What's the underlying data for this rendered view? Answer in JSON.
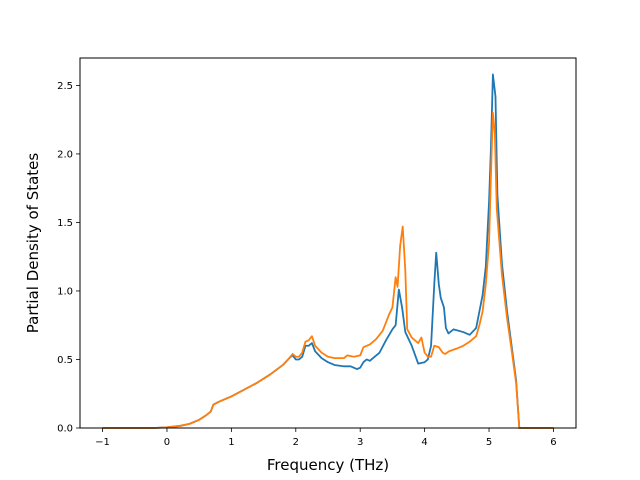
{
  "chart_data": {
    "type": "line",
    "title": "",
    "xlabel": "Frequency (THz)",
    "ylabel": "Partial Density of States",
    "xlim": [
      -1.35,
      6.35
    ],
    "ylim": [
      0.0,
      2.7
    ],
    "xticks": [
      -1,
      0,
      1,
      2,
      3,
      4,
      5,
      6
    ],
    "xtick_labels": [
      "−1",
      "0",
      "1",
      "2",
      "3",
      "4",
      "5",
      "6"
    ],
    "yticks": [
      0.0,
      0.5,
      1.0,
      1.5,
      2.0,
      2.5
    ],
    "ytick_labels": [
      "0.0",
      "0.5",
      "1.0",
      "1.5",
      "2.0",
      "2.5"
    ],
    "grid": false,
    "legend": "none",
    "series": [
      {
        "color": "#1f77b4",
        "points": [
          [
            -1.0,
            0.0
          ],
          [
            -0.2,
            0.0
          ],
          [
            0.0,
            0.005
          ],
          [
            0.2,
            0.015
          ],
          [
            0.35,
            0.03
          ],
          [
            0.5,
            0.06
          ],
          [
            0.6,
            0.09
          ],
          [
            0.68,
            0.12
          ],
          [
            0.72,
            0.17
          ],
          [
            0.8,
            0.19
          ],
          [
            1.0,
            0.23
          ],
          [
            1.2,
            0.28
          ],
          [
            1.4,
            0.33
          ],
          [
            1.6,
            0.39
          ],
          [
            1.8,
            0.46
          ],
          [
            1.9,
            0.51
          ],
          [
            1.95,
            0.53
          ],
          [
            2.0,
            0.5
          ],
          [
            2.05,
            0.5
          ],
          [
            2.1,
            0.52
          ],
          [
            2.15,
            0.6
          ],
          [
            2.2,
            0.6
          ],
          [
            2.25,
            0.62
          ],
          [
            2.3,
            0.56
          ],
          [
            2.4,
            0.51
          ],
          [
            2.5,
            0.48
          ],
          [
            2.6,
            0.46
          ],
          [
            2.75,
            0.45
          ],
          [
            2.85,
            0.45
          ],
          [
            2.95,
            0.43
          ],
          [
            3.0,
            0.44
          ],
          [
            3.05,
            0.48
          ],
          [
            3.1,
            0.5
          ],
          [
            3.15,
            0.49
          ],
          [
            3.2,
            0.51
          ],
          [
            3.3,
            0.55
          ],
          [
            3.4,
            0.64
          ],
          [
            3.5,
            0.72
          ],
          [
            3.55,
            0.75
          ],
          [
            3.6,
            1.01
          ],
          [
            3.65,
            0.88
          ],
          [
            3.7,
            0.7
          ],
          [
            3.8,
            0.6
          ],
          [
            3.9,
            0.47
          ],
          [
            4.0,
            0.48
          ],
          [
            4.05,
            0.5
          ],
          [
            4.1,
            0.6
          ],
          [
            4.15,
            1.05
          ],
          [
            4.18,
            1.28
          ],
          [
            4.22,
            1.05
          ],
          [
            4.25,
            0.95
          ],
          [
            4.3,
            0.88
          ],
          [
            4.33,
            0.73
          ],
          [
            4.37,
            0.69
          ],
          [
            4.45,
            0.72
          ],
          [
            4.6,
            0.7
          ],
          [
            4.7,
            0.68
          ],
          [
            4.8,
            0.73
          ],
          [
            4.85,
            0.85
          ],
          [
            4.9,
            0.97
          ],
          [
            4.95,
            1.18
          ],
          [
            5.0,
            1.65
          ],
          [
            5.03,
            2.05
          ],
          [
            5.06,
            2.58
          ],
          [
            5.1,
            2.42
          ],
          [
            5.13,
            1.7
          ],
          [
            5.2,
            1.2
          ],
          [
            5.28,
            0.85
          ],
          [
            5.35,
            0.6
          ],
          [
            5.42,
            0.35
          ],
          [
            5.47,
            0.0
          ],
          [
            6.0,
            0.0
          ]
        ]
      },
      {
        "color": "#ff7f0e",
        "points": [
          [
            -1.0,
            0.0
          ],
          [
            -0.2,
            0.0
          ],
          [
            0.0,
            0.005
          ],
          [
            0.2,
            0.015
          ],
          [
            0.35,
            0.03
          ],
          [
            0.5,
            0.06
          ],
          [
            0.6,
            0.09
          ],
          [
            0.68,
            0.12
          ],
          [
            0.72,
            0.17
          ],
          [
            0.8,
            0.19
          ],
          [
            1.0,
            0.23
          ],
          [
            1.2,
            0.28
          ],
          [
            1.4,
            0.33
          ],
          [
            1.6,
            0.39
          ],
          [
            1.8,
            0.46
          ],
          [
            1.9,
            0.51
          ],
          [
            1.95,
            0.54
          ],
          [
            2.0,
            0.52
          ],
          [
            2.05,
            0.52
          ],
          [
            2.1,
            0.55
          ],
          [
            2.15,
            0.63
          ],
          [
            2.2,
            0.64
          ],
          [
            2.25,
            0.67
          ],
          [
            2.3,
            0.6
          ],
          [
            2.4,
            0.55
          ],
          [
            2.5,
            0.52
          ],
          [
            2.6,
            0.51
          ],
          [
            2.75,
            0.51
          ],
          [
            2.8,
            0.53
          ],
          [
            2.9,
            0.52
          ],
          [
            3.0,
            0.53
          ],
          [
            3.05,
            0.59
          ],
          [
            3.15,
            0.61
          ],
          [
            3.25,
            0.65
          ],
          [
            3.35,
            0.71
          ],
          [
            3.45,
            0.83
          ],
          [
            3.5,
            0.88
          ],
          [
            3.55,
            1.1
          ],
          [
            3.58,
            1.03
          ],
          [
            3.62,
            1.33
          ],
          [
            3.66,
            1.47
          ],
          [
            3.7,
            1.15
          ],
          [
            3.73,
            0.72
          ],
          [
            3.8,
            0.66
          ],
          [
            3.9,
            0.62
          ],
          [
            3.95,
            0.66
          ],
          [
            4.0,
            0.55
          ],
          [
            4.05,
            0.52
          ],
          [
            4.1,
            0.52
          ],
          [
            4.15,
            0.6
          ],
          [
            4.22,
            0.59
          ],
          [
            4.28,
            0.55
          ],
          [
            4.32,
            0.54
          ],
          [
            4.38,
            0.56
          ],
          [
            4.5,
            0.58
          ],
          [
            4.6,
            0.6
          ],
          [
            4.7,
            0.63
          ],
          [
            4.8,
            0.67
          ],
          [
            4.85,
            0.75
          ],
          [
            4.9,
            0.85
          ],
          [
            4.95,
            1.05
          ],
          [
            5.0,
            1.35
          ],
          [
            5.03,
            1.85
          ],
          [
            5.06,
            2.3
          ],
          [
            5.09,
            2.15
          ],
          [
            5.12,
            1.6
          ],
          [
            5.2,
            1.12
          ],
          [
            5.28,
            0.8
          ],
          [
            5.35,
            0.57
          ],
          [
            5.42,
            0.33
          ],
          [
            5.47,
            0.0
          ],
          [
            6.0,
            0.0
          ]
        ]
      }
    ]
  }
}
